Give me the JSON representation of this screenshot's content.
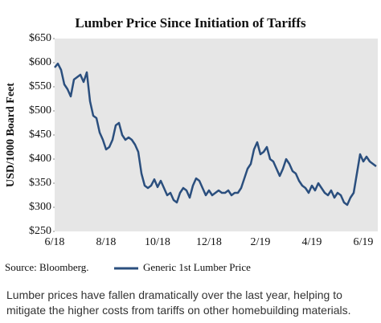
{
  "chart_data": {
    "type": "line",
    "title": "Lumber Price Since Initiation of Tariffs",
    "y_label": "USD/1000 Board Feet",
    "source": "Source: Bloomberg.",
    "caption": "Lumber prices have fallen dramatically over the last year, helping to mitigate the higher costs from tariffs on other homebuilding materials.",
    "ylim": [
      250,
      650
    ],
    "yticks": [
      {
        "value": 250,
        "label": "$250"
      },
      {
        "value": 300,
        "label": "$300"
      },
      {
        "value": 350,
        "label": "$350"
      },
      {
        "value": 400,
        "label": "$400"
      },
      {
        "value": 450,
        "label": "$450"
      },
      {
        "value": 500,
        "label": "$500"
      },
      {
        "value": 550,
        "label": "$550"
      },
      {
        "value": 600,
        "label": "$600"
      },
      {
        "value": 650,
        "label": "$650"
      }
    ],
    "categories": [
      "6/18",
      null,
      null,
      null,
      null,
      null,
      null,
      null,
      null,
      null,
      null,
      null,
      null,
      null,
      null,
      null,
      "8/18",
      null,
      null,
      null,
      null,
      null,
      null,
      null,
      null,
      null,
      null,
      null,
      null,
      null,
      null,
      null,
      "10/18",
      null,
      null,
      null,
      null,
      null,
      null,
      null,
      null,
      null,
      null,
      null,
      null,
      null,
      null,
      null,
      "12/18",
      null,
      null,
      null,
      null,
      null,
      null,
      null,
      null,
      null,
      null,
      null,
      null,
      null,
      null,
      null,
      "2/19",
      null,
      null,
      null,
      null,
      null,
      null,
      null,
      null,
      null,
      null,
      null,
      null,
      null,
      null,
      null,
      "4/19",
      null,
      null,
      null,
      null,
      null,
      null,
      null,
      null,
      null,
      null,
      null,
      null,
      null,
      null,
      null,
      "6/19",
      null,
      null,
      null,
      null
    ],
    "series": [
      {
        "name": "Generic 1st Lumber Price",
        "color": "#2b4f7e",
        "values": [
          590,
          598,
          585,
          555,
          545,
          530,
          565,
          570,
          575,
          560,
          580,
          520,
          490,
          485,
          455,
          440,
          420,
          425,
          440,
          470,
          475,
          450,
          440,
          445,
          440,
          430,
          415,
          370,
          345,
          340,
          345,
          358,
          342,
          355,
          340,
          325,
          330,
          315,
          310,
          330,
          340,
          335,
          320,
          345,
          360,
          355,
          340,
          325,
          335,
          325,
          330,
          335,
          330,
          330,
          335,
          325,
          330,
          330,
          340,
          360,
          380,
          390,
          420,
          435,
          410,
          415,
          425,
          400,
          395,
          380,
          365,
          380,
          400,
          390,
          375,
          370,
          355,
          345,
          340,
          330,
          345,
          335,
          350,
          340,
          330,
          325,
          335,
          320,
          330,
          325,
          310,
          305,
          320,
          330,
          370,
          410,
          395,
          405,
          395,
          390,
          385
        ]
      }
    ],
    "plot_background": "#e6e6e6"
  }
}
